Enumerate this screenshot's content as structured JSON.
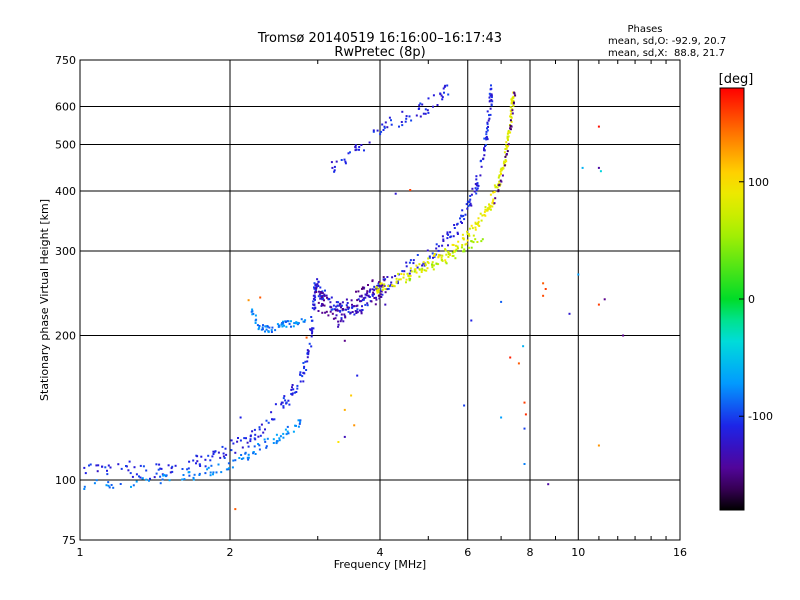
{
  "chart_data": {
    "type": "scatter",
    "title": "Tromsø 20140519 16:16:00–16:17:43",
    "subtitle": "RwPretec (8p)",
    "xlabel": "Frequency [MHz]",
    "ylabel": "Stationary phase Virtual Height [km]",
    "x_scale": "log",
    "y_scale": "log",
    "xlim": [
      1,
      16
    ],
    "ylim": [
      75,
      750
    ],
    "x_ticks": [
      1,
      2,
      4,
      6,
      8,
      10,
      16
    ],
    "x_tick_labels": [
      "1",
      "2",
      "4",
      "6",
      "8",
      "10",
      "16"
    ],
    "y_ticks": [
      75,
      100,
      200,
      300,
      400,
      500,
      600,
      750
    ],
    "y_tick_labels": [
      "75",
      "100",
      "200",
      "300",
      "400",
      "500",
      "600",
      "750"
    ],
    "grid": true,
    "info_box": {
      "title": "Phases",
      "line1": "mean, sd,O: -92.9, 20.7",
      "line2": "mean, sd,X:  88.8, 21.7"
    },
    "colorbar": {
      "label": "[deg]",
      "range": [
        -180,
        180
      ],
      "ticks": [
        100,
        0,
        -100
      ],
      "tick_labels": [
        "100",
        "0",
        "-100"
      ]
    },
    "traces": [
      {
        "name": "",
        "phase": -110,
        "spread": [
          0.006,
          0.012
        ],
        "density": 60,
        "points": [
          [
            1.0,
            104
          ],
          [
            1.2,
            106
          ],
          [
            1.4,
            104
          ],
          [
            1.6,
            106
          ],
          [
            1.8,
            111
          ],
          [
            2.0,
            116
          ],
          [
            2.2,
            122
          ],
          [
            2.4,
            134
          ],
          [
            2.6,
            146
          ],
          [
            2.75,
            158
          ],
          [
            2.85,
            175
          ],
          [
            2.92,
            205
          ],
          [
            2.95,
            235
          ],
          [
            2.97,
            258
          ],
          [
            3.05,
            245
          ],
          [
            3.2,
            232
          ],
          [
            3.35,
            224
          ],
          [
            3.6,
            230
          ],
          [
            3.8,
            240
          ],
          [
            4.0,
            250
          ],
          [
            4.3,
            265
          ],
          [
            4.7,
            282
          ],
          [
            5.2,
            300
          ],
          [
            5.6,
            325
          ],
          [
            5.9,
            355
          ],
          [
            6.2,
            400
          ],
          [
            6.4,
            450
          ],
          [
            6.55,
            520
          ],
          [
            6.65,
            600
          ],
          [
            6.7,
            645
          ]
        ]
      },
      {
        "name": "",
        "phase": -80,
        "spread": [
          0.005,
          0.008
        ],
        "density": 50,
        "points": [
          [
            1.0,
            98
          ],
          [
            1.3,
            99
          ],
          [
            1.6,
            101
          ],
          [
            1.8,
            104
          ],
          [
            2.0,
            108
          ],
          [
            2.2,
            114
          ],
          [
            2.4,
            120
          ],
          [
            2.6,
            126
          ],
          [
            2.8,
            132
          ]
        ]
      },
      {
        "name": "",
        "phase": -80,
        "spread": [
          0.004,
          0.006
        ],
        "density": 50,
        "points": [
          [
            2.2,
            225
          ],
          [
            2.3,
            208
          ],
          [
            2.4,
            206
          ],
          [
            2.55,
            210
          ],
          [
            2.7,
            212
          ],
          [
            2.85,
            214
          ]
        ]
      },
      {
        "name": "",
        "phase": -140,
        "spread": [
          0.012,
          0.02
        ],
        "density": 70,
        "points": [
          [
            2.95,
            240
          ],
          [
            3.1,
            228
          ],
          [
            3.3,
            220
          ],
          [
            3.5,
            228
          ],
          [
            3.7,
            238
          ],
          [
            3.9,
            246
          ],
          [
            4.1,
            252
          ]
        ]
      },
      {
        "name": "",
        "phase": -110,
        "spread": [
          0.006,
          0.012
        ],
        "density": 45,
        "points": [
          [
            3.2,
            450
          ],
          [
            3.5,
            480
          ],
          [
            3.9,
            520
          ],
          [
            4.3,
            560
          ],
          [
            4.8,
            590
          ],
          [
            5.2,
            620
          ],
          [
            5.5,
            650
          ]
        ]
      },
      {
        "name": "",
        "phase": 85,
        "spread": [
          0.006,
          0.01
        ],
        "density": 70,
        "points": [
          [
            3.9,
            250
          ],
          [
            4.3,
            260
          ],
          [
            4.7,
            272
          ],
          [
            5.1,
            285
          ],
          [
            5.5,
            298
          ],
          [
            5.9,
            315
          ],
          [
            6.3,
            340
          ],
          [
            6.6,
            370
          ],
          [
            6.9,
            410
          ],
          [
            7.1,
            460
          ],
          [
            7.25,
            520
          ],
          [
            7.35,
            580
          ],
          [
            7.4,
            640
          ]
        ]
      },
      {
        "name": "",
        "phase": 60,
        "spread": [
          0.004,
          0.006
        ],
        "density": 35,
        "points": [
          [
            4.5,
            262
          ],
          [
            5.0,
            275
          ],
          [
            5.5,
            290
          ],
          [
            6.0,
            305
          ],
          [
            6.5,
            325
          ]
        ]
      },
      {
        "name": "",
        "phase": -150,
        "spread": [
          0.003,
          0.005
        ],
        "density": 25,
        "points": [
          [
            6.8,
            380
          ],
          [
            7.0,
            420
          ],
          [
            7.2,
            480
          ],
          [
            7.35,
            560
          ],
          [
            7.45,
            640
          ]
        ]
      }
    ],
    "outliers": [
      [
        2.18,
        237,
        130
      ],
      [
        2.3,
        240,
        150
      ],
      [
        2.1,
        135,
        -110
      ],
      [
        2.05,
        87,
        150
      ],
      [
        2.85,
        198,
        150
      ],
      [
        3.4,
        195,
        -150
      ],
      [
        3.6,
        165,
        -110
      ],
      [
        3.5,
        150,
        110
      ],
      [
        3.4,
        140,
        120
      ],
      [
        3.55,
        130,
        130
      ],
      [
        3.4,
        123,
        -130
      ],
      [
        3.3,
        120,
        100
      ],
      [
        4.6,
        402,
        160
      ],
      [
        4.3,
        395,
        -120
      ],
      [
        4.1,
        232,
        -130
      ],
      [
        5.9,
        143,
        -100
      ],
      [
        6.1,
        215,
        -110
      ],
      [
        7.0,
        235,
        -90
      ],
      [
        7.0,
        135,
        -70
      ],
      [
        7.3,
        180,
        170
      ],
      [
        7.6,
        175,
        150
      ],
      [
        7.8,
        145,
        160
      ],
      [
        7.85,
        137,
        165
      ],
      [
        7.8,
        128,
        -100
      ],
      [
        7.8,
        108,
        -80
      ],
      [
        7.75,
        190,
        -60
      ],
      [
        8.5,
        257,
        150
      ],
      [
        8.6,
        250,
        160
      ],
      [
        8.5,
        242,
        155
      ],
      [
        8.7,
        98,
        -140
      ],
      [
        9.6,
        222,
        -120
      ],
      [
        10.0,
        268,
        -70
      ],
      [
        10.2,
        447,
        -60
      ],
      [
        11.0,
        545,
        175
      ],
      [
        11.0,
        447,
        -140
      ],
      [
        11.1,
        440,
        -40
      ],
      [
        11.0,
        118,
        130
      ],
      [
        11.3,
        238,
        -150
      ],
      [
        11.0,
        232,
        160
      ],
      [
        12.3,
        200,
        -150
      ]
    ]
  }
}
